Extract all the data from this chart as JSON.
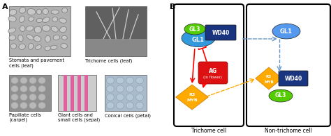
{
  "fig_width": 4.74,
  "fig_height": 1.96,
  "dpi": 100,
  "panel_A_label": "A",
  "panel_B_label": "B",
  "labels": {
    "stomata": "Stomata and pavement\ncells (leaf)",
    "trichome": "Trichome cells (leaf)",
    "papillate": "Papillate cells\n(carpel)",
    "giant": "Giant cells and\nsmall cells (sepal)",
    "conical": "Conical cells (petal)"
  },
  "diagram": {
    "trichome_cell_label": "Trichome cell",
    "non_trichome_cell_label": "Non-trichome cell",
    "GL3_color": "#55cc00",
    "GL1_color": "#3399dd",
    "WD40_color": "#1a3580",
    "AG_color": "#dd1111",
    "R3MYB_color": "#ffaa00",
    "GL1_right_color": "#5599ee"
  },
  "img_stomata_color": "#b0b0b0",
  "img_trichome_color": "#606060",
  "img_papillate_color": "#909090",
  "img_giant_bg": "#cccccc",
  "img_giant_stripe": "#e060a0",
  "img_conical_color": "#aabbcc",
  "bg_color": "#ffffff"
}
